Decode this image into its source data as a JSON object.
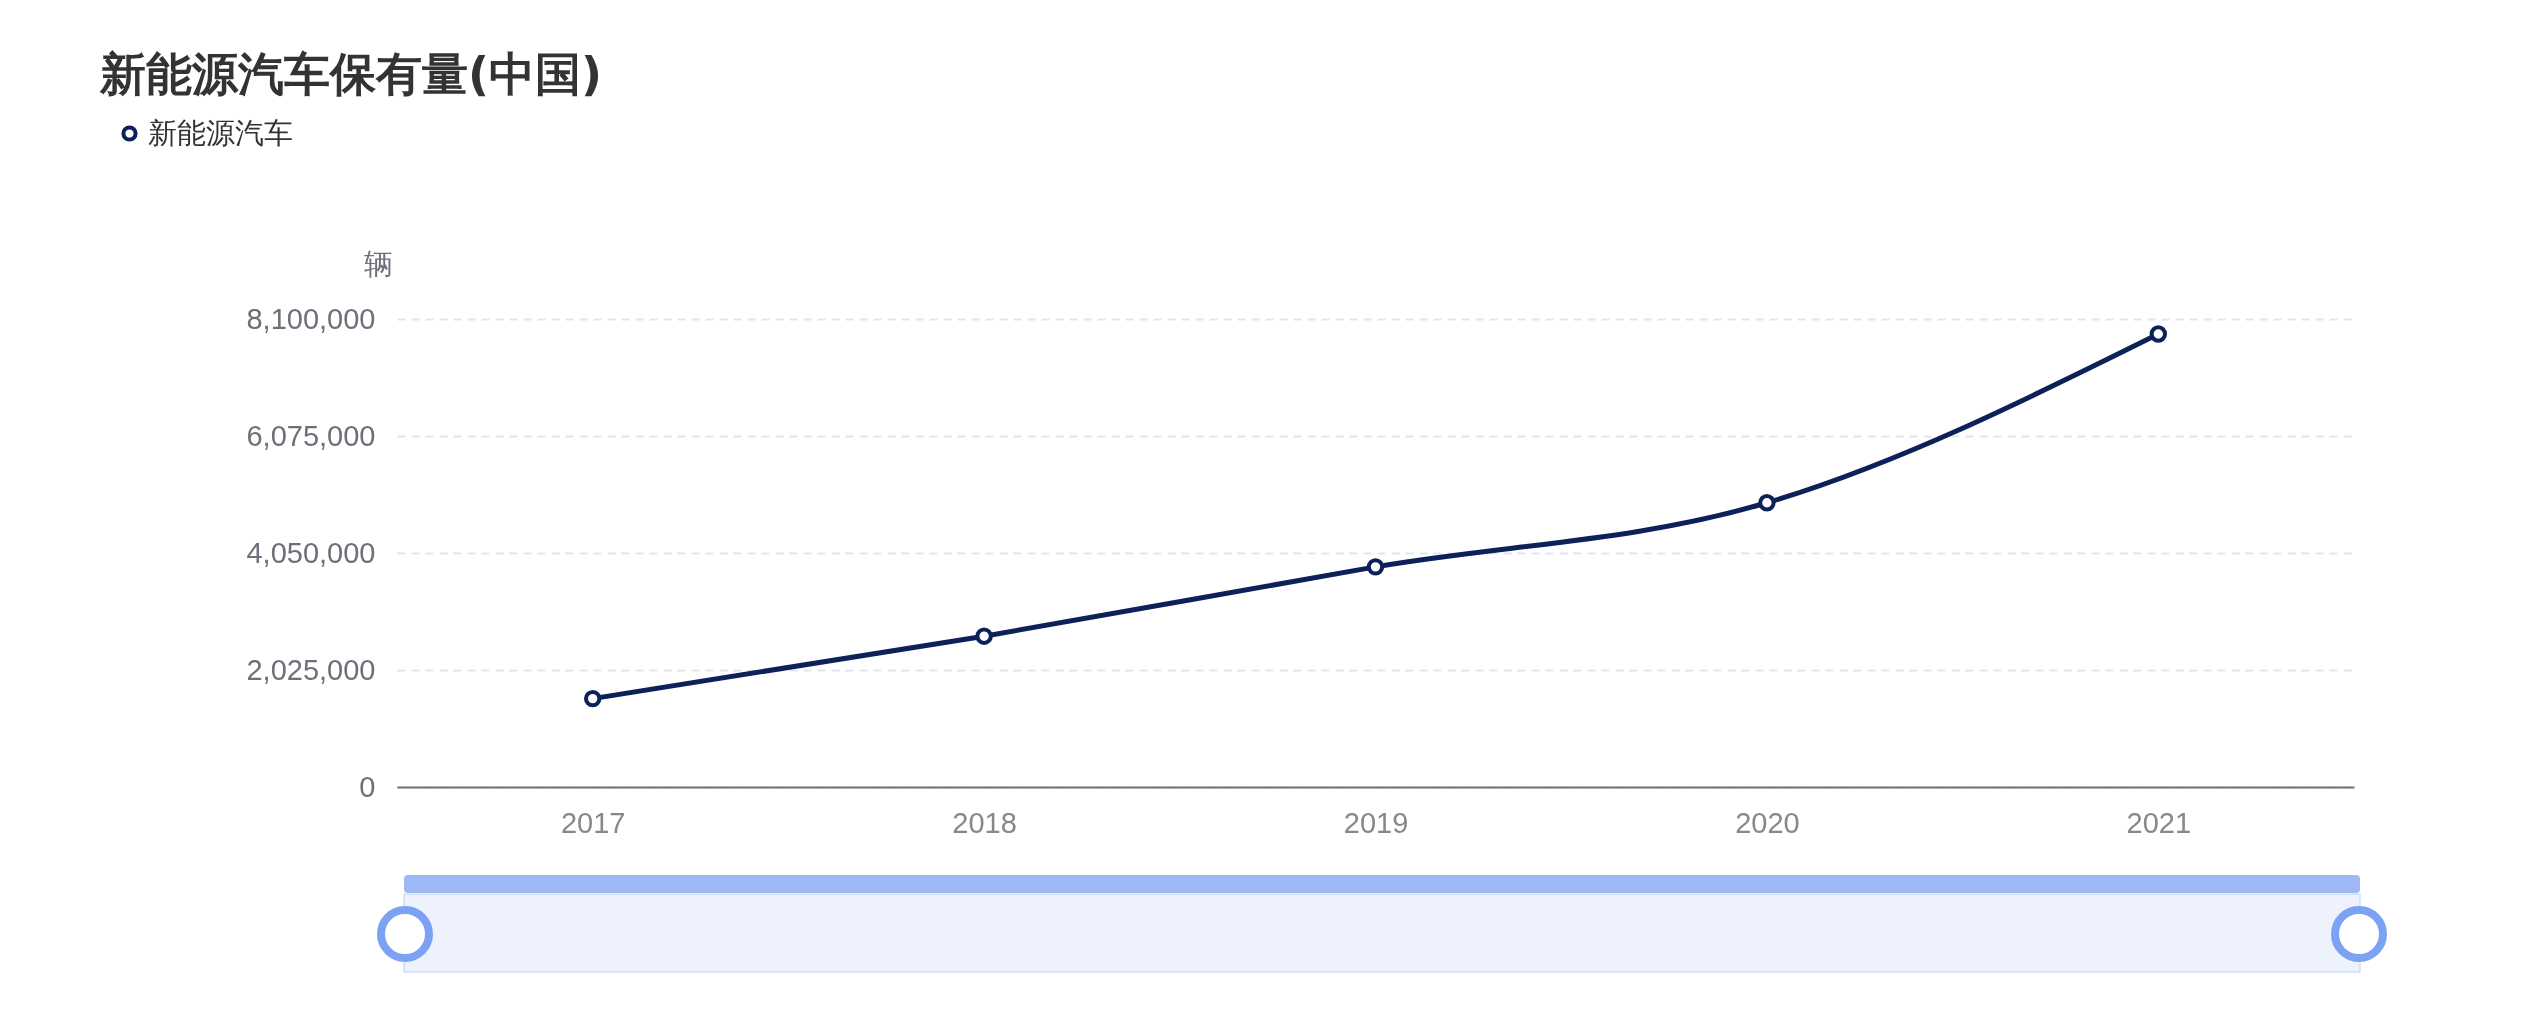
{
  "chart_data": {
    "type": "line",
    "title": "新能源汽车保有量(中国)",
    "ylabel": "辆",
    "categories": [
      "2017",
      "2018",
      "2019",
      "2020",
      "2021"
    ],
    "series": [
      {
        "name": "新能源汽车",
        "color": "#0b2157",
        "values": [
          1530000,
          2610000,
          3810000,
          4920000,
          7840000
        ]
      }
    ],
    "ylim": [
      0,
      8100000
    ],
    "yticks": [
      0,
      {
        "value": 2025000,
        "label": "2,025,000"
      },
      {
        "value": 4050000,
        "label": "4,050,000"
      },
      {
        "value": 6075000,
        "label": "6,075,000"
      },
      {
        "value": 8100000,
        "label": "8,100,000"
      }
    ],
    "grid": "y",
    "legend": "top left",
    "marker": "circle",
    "line_style": "solid"
  }
}
